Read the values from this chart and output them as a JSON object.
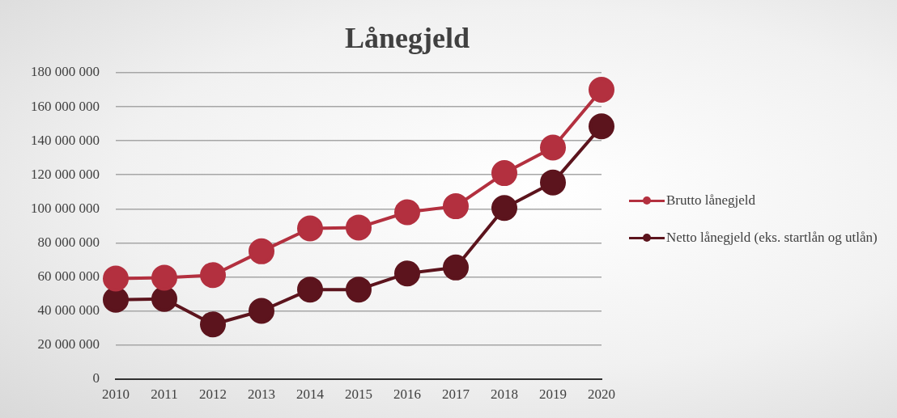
{
  "chart_data": {
    "type": "line",
    "title": "Lånegjeld",
    "categories": [
      "2010",
      "2011",
      "2012",
      "2013",
      "2014",
      "2015",
      "2016",
      "2017",
      "2018",
      "2019",
      "2020"
    ],
    "series": [
      {
        "name": "Brutto lånegjeld",
        "color": "#b3303f",
        "values": [
          59000000,
          59500000,
          61000000,
          75000000,
          88500000,
          89000000,
          98000000,
          101500000,
          121000000,
          136000000,
          170000000
        ]
      },
      {
        "name": "Netto lånegjeld (eks. startlån og utlån)",
        "color": "#5c141d",
        "values": [
          46500000,
          47000000,
          32000000,
          40000000,
          52500000,
          52500000,
          62000000,
          65500000,
          100500000,
          115500000,
          148500000
        ]
      }
    ],
    "ylim": [
      0,
      180000000
    ],
    "yticks": [
      {
        "value": 0,
        "label": "0"
      },
      {
        "value": 20000000,
        "label": "20 000 000"
      },
      {
        "value": 40000000,
        "label": "40 000 000"
      },
      {
        "value": 60000000,
        "label": "60 000 000"
      },
      {
        "value": 80000000,
        "label": "80 000 000"
      },
      {
        "value": 100000000,
        "label": "100 000 000"
      },
      {
        "value": 120000000,
        "label": "120 000 000"
      },
      {
        "value": 140000000,
        "label": "140 000 000"
      },
      {
        "value": 160000000,
        "label": "160 000 000"
      },
      {
        "value": 180000000,
        "label": "180 000 000"
      }
    ],
    "grid": "y",
    "legend": "right",
    "marker": "circle",
    "line_style": "solid"
  }
}
